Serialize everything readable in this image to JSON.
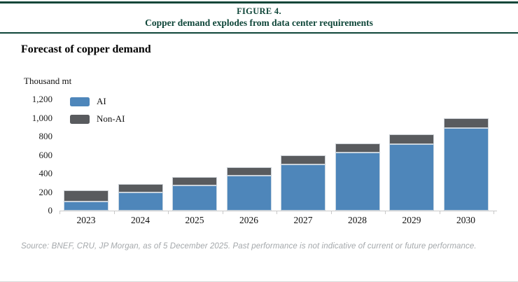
{
  "header": {
    "figure_label": "FIGURE 4.",
    "figure_title": "Copper demand explodes from data center requirements"
  },
  "chart": {
    "title": "Forecast of copper demand",
    "unit_label": "Thousand mt"
  },
  "chart_data": {
    "type": "bar",
    "stacked": true,
    "title": "Forecast of copper demand",
    "ylabel": "Thousand mt",
    "xlabel": "",
    "categories": [
      "2023",
      "2024",
      "2025",
      "2026",
      "2027",
      "2028",
      "2029",
      "2030"
    ],
    "series": [
      {
        "name": "AI",
        "color": "#4E86BA",
        "values": [
          100,
          195,
          270,
          375,
          500,
          625,
          715,
          890
        ]
      },
      {
        "name": "Non-AI",
        "color": "#595B5E",
        "values": [
          120,
          90,
          90,
          95,
          95,
          100,
          110,
          110
        ]
      }
    ],
    "ylim": [
      0,
      1200
    ],
    "yticks": [
      0,
      200,
      400,
      600,
      800,
      1000,
      1200
    ],
    "ytick_labels": [
      "0",
      "200",
      "400",
      "600",
      "800",
      "1,000",
      "1,200"
    ],
    "legend_position": "top-left",
    "grid": false
  },
  "footer": {
    "source": "Source: BNEF, CRU, JP Morgan, as of 5 December 2025. Past performance is not indicative of current or future performance."
  },
  "colors": {
    "accent_green": "#0F4639",
    "ai_blue": "#4E86BA",
    "non_ai_gray": "#595B5E",
    "axis_gray": "#C9C9C9",
    "source_gray": "#A4A8AB"
  }
}
